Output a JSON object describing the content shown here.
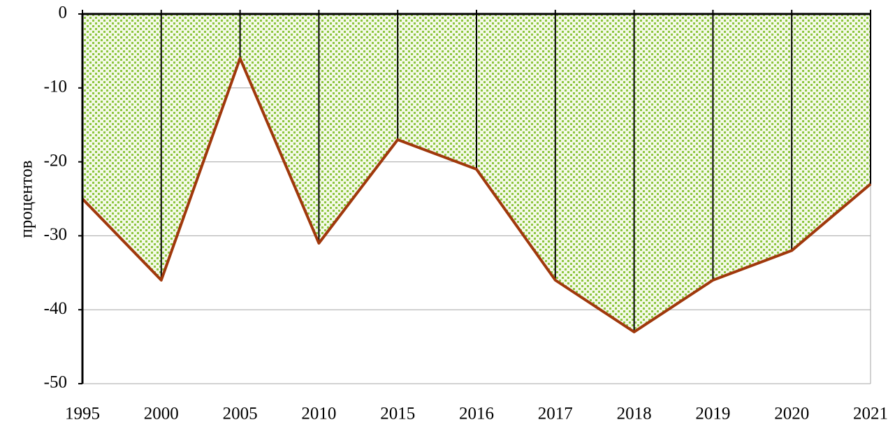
{
  "chart_data": {
    "type": "area",
    "y_label": "процентов",
    "categories": [
      "1995",
      "2000",
      "2005",
      "2010",
      "2015",
      "2016",
      "2017",
      "2018",
      "2019",
      "2020",
      "2021"
    ],
    "values": [
      -25,
      -36,
      -6,
      -31,
      -17,
      -21,
      -36,
      -43,
      -36,
      -32,
      -23
    ],
    "fill_color": "#8dc63f",
    "line_color": "#a0380c",
    "ylim": [
      -50,
      0
    ],
    "yticks": [
      0,
      -10,
      -20,
      -30,
      -40,
      -50
    ],
    "grid": true,
    "drop_lines": true
  }
}
